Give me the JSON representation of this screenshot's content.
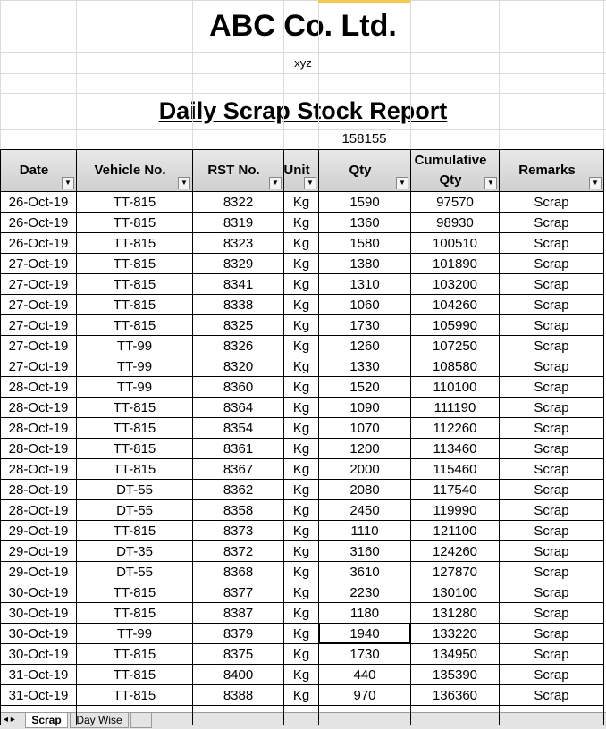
{
  "header": {
    "title": "ABC Co. Ltd.",
    "subtitle": "xyz",
    "report_title": "Daily Scrap Stock Report",
    "total": 158155
  },
  "table": {
    "columns": [
      "Date",
      "Vehicle No.",
      "RST No.",
      "Unit",
      "Qty",
      "Cumulative Qty",
      "Remarks"
    ],
    "rows": [
      [
        "26-Oct-19",
        "TT-815",
        8322,
        "Kg",
        1590,
        97570,
        "Scrap"
      ],
      [
        "26-Oct-19",
        "TT-815",
        8319,
        "Kg",
        1360,
        98930,
        "Scrap"
      ],
      [
        "26-Oct-19",
        "TT-815",
        8323,
        "Kg",
        1580,
        100510,
        "Scrap"
      ],
      [
        "27-Oct-19",
        "TT-815",
        8329,
        "Kg",
        1380,
        101890,
        "Scrap"
      ],
      [
        "27-Oct-19",
        "TT-815",
        8341,
        "Kg",
        1310,
        103200,
        "Scrap"
      ],
      [
        "27-Oct-19",
        "TT-815",
        8338,
        "Kg",
        1060,
        104260,
        "Scrap"
      ],
      [
        "27-Oct-19",
        "TT-815",
        8325,
        "Kg",
        1730,
        105990,
        "Scrap"
      ],
      [
        "27-Oct-19",
        "TT-99",
        8326,
        "Kg",
        1260,
        107250,
        "Scrap"
      ],
      [
        "27-Oct-19",
        "TT-99",
        8320,
        "Kg",
        1330,
        108580,
        "Scrap"
      ],
      [
        "28-Oct-19",
        "TT-99",
        8360,
        "Kg",
        1520,
        110100,
        "Scrap"
      ],
      [
        "28-Oct-19",
        "TT-815",
        8364,
        "Kg",
        1090,
        111190,
        "Scrap"
      ],
      [
        "28-Oct-19",
        "TT-815",
        8354,
        "Kg",
        1070,
        112260,
        "Scrap"
      ],
      [
        "28-Oct-19",
        "TT-815",
        8361,
        "Kg",
        1200,
        113460,
        "Scrap"
      ],
      [
        "28-Oct-19",
        "TT-815",
        8367,
        "Kg",
        2000,
        115460,
        "Scrap"
      ],
      [
        "28-Oct-19",
        "DT-55",
        8362,
        "Kg",
        2080,
        117540,
        "Scrap"
      ],
      [
        "28-Oct-19",
        "DT-55",
        8358,
        "Kg",
        2450,
        119990,
        "Scrap"
      ],
      [
        "29-Oct-19",
        "TT-815",
        8373,
        "Kg",
        1110,
        121100,
        "Scrap"
      ],
      [
        "29-Oct-19",
        "DT-35",
        8372,
        "Kg",
        3160,
        124260,
        "Scrap"
      ],
      [
        "29-Oct-19",
        "DT-55",
        8368,
        "Kg",
        3610,
        127870,
        "Scrap"
      ],
      [
        "30-Oct-19",
        "TT-815",
        8377,
        "Kg",
        2230,
        130100,
        "Scrap"
      ],
      [
        "30-Oct-19",
        "TT-815",
        8387,
        "Kg",
        1180,
        131280,
        "Scrap"
      ],
      [
        "30-Oct-19",
        "TT-99",
        8379,
        "Kg",
        1940,
        133220,
        "Scrap"
      ],
      [
        "30-Oct-19",
        "TT-815",
        8375,
        "Kg",
        1730,
        134950,
        "Scrap"
      ],
      [
        "31-Oct-19",
        "TT-815",
        8400,
        "Kg",
        440,
        135390,
        "Scrap"
      ],
      [
        "31-Oct-19",
        "TT-815",
        8388,
        "Kg",
        970,
        136360,
        "Scrap"
      ]
    ]
  },
  "tabs": [
    "Scrap",
    "Day Wise"
  ]
}
